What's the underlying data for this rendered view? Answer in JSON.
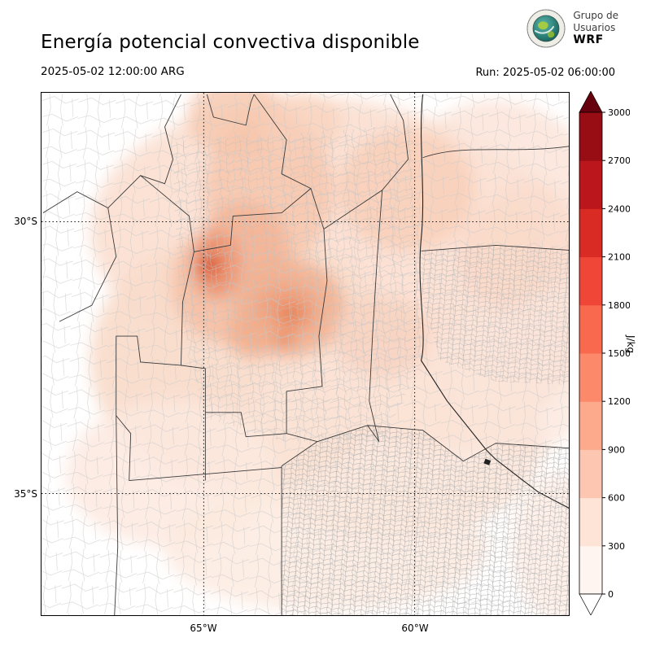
{
  "header": {
    "title": "Energía potencial convectiva disponible",
    "valid_time": "2025-05-02 12:00:00 ARG",
    "run_label": "Run: 2025-05-02 06:00:00",
    "logo": {
      "line1": "Grupo de",
      "line2": "Usuarios",
      "line3": "WRF"
    }
  },
  "axes": {
    "lat_labels": [
      "30°S",
      "35°S"
    ],
    "lon_labels": [
      "65°W",
      "60°W"
    ]
  },
  "colorbar": {
    "unit": "J/kg",
    "ticks": [
      0,
      300,
      600,
      900,
      1200,
      1500,
      1800,
      2100,
      2400,
      2700,
      3000
    ],
    "segment_colors": [
      "#fff5f0",
      "#fee3d7",
      "#fdc6b0",
      "#fca98c",
      "#fc8969",
      "#f9694e",
      "#ef4638",
      "#d92a23",
      "#bb161b",
      "#980c13"
    ],
    "under_color": "#ffffff",
    "over_color": "#67000d"
  },
  "chart_data": {
    "type": "heatmap",
    "title": "Energía potencial convectiva disponible",
    "units": "J/kg",
    "colormap": "Reds",
    "extend": "both",
    "scale_ticks": [
      0,
      300,
      600,
      900,
      1200,
      1500,
      1800,
      2100,
      2400,
      2700,
      3000
    ],
    "lat_ticks": [
      "30°S",
      "35°S"
    ],
    "lon_ticks": [
      "65°W",
      "60°W"
    ],
    "valid_time": "2025-05-02 12:00:00 ARG",
    "run_time": "2025-05-02 06:00:00"
  }
}
